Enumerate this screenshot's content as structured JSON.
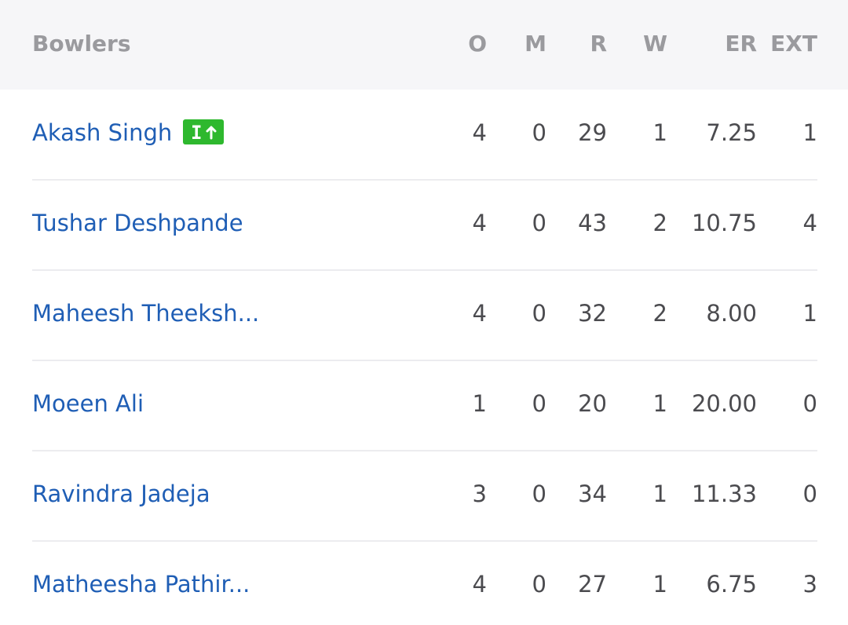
{
  "header": {
    "bowlers": "Bowlers",
    "overs": "O",
    "maidens": "M",
    "runs": "R",
    "wickets": "W",
    "economy": "ER",
    "extras": "EXT"
  },
  "impact_badge": {
    "icon": "impact-player-in-icon",
    "color": "#2eb82e"
  },
  "bowlers": [
    {
      "name": "Akash Singh",
      "o": "4",
      "m": "0",
      "r": "29",
      "w": "1",
      "er": "7.25",
      "ext": "1",
      "impact": true
    },
    {
      "name": "Tushar Deshpande",
      "o": "4",
      "m": "0",
      "r": "43",
      "w": "2",
      "er": "10.75",
      "ext": "4"
    },
    {
      "name": "Maheesh Theeksh...",
      "o": "4",
      "m": "0",
      "r": "32",
      "w": "2",
      "er": "8.00",
      "ext": "1"
    },
    {
      "name": "Moeen Ali",
      "o": "1",
      "m": "0",
      "r": "20",
      "w": "1",
      "er": "20.00",
      "ext": "0"
    },
    {
      "name": "Ravindra Jadeja",
      "o": "3",
      "m": "0",
      "r": "34",
      "w": "1",
      "er": "11.33",
      "ext": "0"
    },
    {
      "name": "Matheesha Pathir...",
      "o": "4",
      "m": "0",
      "r": "27",
      "w": "1",
      "er": "6.75",
      "ext": "3"
    }
  ]
}
